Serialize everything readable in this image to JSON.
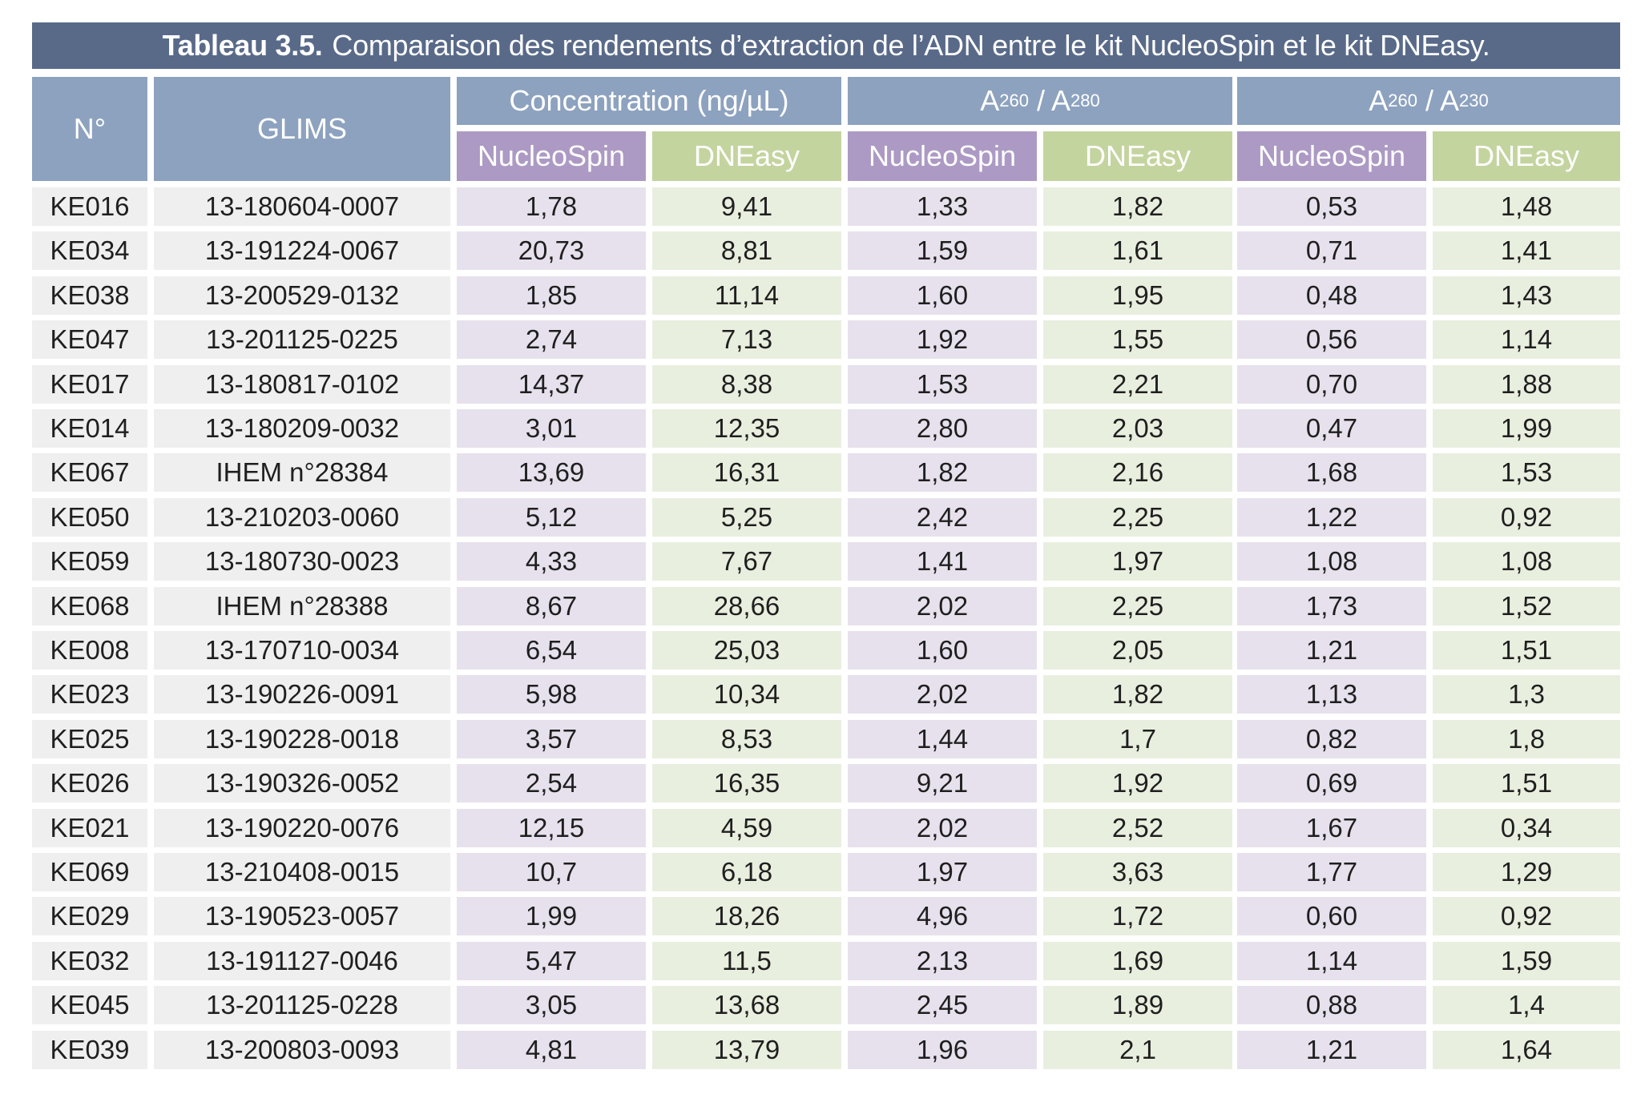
{
  "table": {
    "caption_number": "Tableau 3.5.",
    "caption_text": "Comparaison des rendements d’extraction de l’ADN entre le kit NucleoSpin et le kit DNEasy.",
    "headers": {
      "no": "N°",
      "glims": "GLIMS",
      "concentration": "Concentration (ng/µL)",
      "a280_main": "A",
      "a280_sub1": "260",
      "a280_sep": " / A",
      "a280_sub2": "280",
      "a230_main": "A",
      "a230_sub1": "260",
      "a230_sep": " / A",
      "a230_sub2": "230",
      "nucleospin": "NucleoSpin",
      "dneasy": "DNEasy"
    },
    "rows": [
      [
        "KE016",
        "13-180604-0007",
        "1,78",
        "9,41",
        "1,33",
        "1,82",
        "0,53",
        "1,48"
      ],
      [
        "KE034",
        "13-191224-0067",
        "20,73",
        "8,81",
        "1,59",
        "1,61",
        "0,71",
        "1,41"
      ],
      [
        "KE038",
        "13-200529-0132",
        "1,85",
        "11,14",
        "1,60",
        "1,95",
        "0,48",
        "1,43"
      ],
      [
        "KE047",
        "13-201125-0225",
        "2,74",
        "7,13",
        "1,92",
        "1,55",
        "0,56",
        "1,14"
      ],
      [
        "KE017",
        "13-180817-0102",
        "14,37",
        "8,38",
        "1,53",
        "2,21",
        "0,70",
        "1,88"
      ],
      [
        "KE014",
        "13-180209-0032",
        "3,01",
        "12,35",
        "2,80",
        "2,03",
        "0,47",
        "1,99"
      ],
      [
        "KE067",
        "IHEM n°28384",
        "13,69",
        "16,31",
        "1,82",
        "2,16",
        "1,68",
        "1,53"
      ],
      [
        "KE050",
        "13-210203-0060",
        "5,12",
        "5,25",
        "2,42",
        "2,25",
        "1,22",
        "0,92"
      ],
      [
        "KE059",
        "13-180730-0023",
        "4,33",
        "7,67",
        "1,41",
        "1,97",
        "1,08",
        "1,08"
      ],
      [
        "KE068",
        "IHEM n°28388",
        "8,67",
        "28,66",
        "2,02",
        "2,25",
        "1,73",
        "1,52"
      ],
      [
        "KE008",
        "13-170710-0034",
        "6,54",
        "25,03",
        "1,60",
        "2,05",
        "1,21",
        "1,51"
      ],
      [
        "KE023",
        "13-190226-0091",
        "5,98",
        "10,34",
        "2,02",
        "1,82",
        "1,13",
        "1,3"
      ],
      [
        "KE025",
        "13-190228-0018",
        "3,57",
        "8,53",
        "1,44",
        "1,7",
        "0,82",
        "1,8"
      ],
      [
        "KE026",
        "13-190326-0052",
        "2,54",
        "16,35",
        "9,21",
        "1,92",
        "0,69",
        "1,51"
      ],
      [
        "KE021",
        "13-190220-0076",
        "12,15",
        "4,59",
        "2,02",
        "2,52",
        "1,67",
        "0,34"
      ],
      [
        "KE069",
        "13-210408-0015",
        "10,7",
        "6,18",
        "1,97",
        "3,63",
        "1,77",
        "1,29"
      ],
      [
        "KE029",
        "13-190523-0057",
        "1,99",
        "18,26",
        "4,96",
        "1,72",
        "0,60",
        "0,92"
      ],
      [
        "KE032",
        "13-191127-0046",
        "5,47",
        "11,5",
        "2,13",
        "1,69",
        "1,14",
        "1,59"
      ],
      [
        "KE045",
        "13-201125-0228",
        "3,05",
        "13,68",
        "2,45",
        "1,89",
        "0,88",
        "1,4"
      ],
      [
        "KE039",
        "13-200803-0093",
        "4,81",
        "13,79",
        "1,96",
        "2,1",
        "1,21",
        "1,64"
      ]
    ]
  },
  "colors": {
    "title_bg": "#596a89",
    "header_main": "#8da2bf",
    "header_nucleospin": "#ac9ac4",
    "header_dneasy": "#c4d49f",
    "cell_main": "#efefef",
    "cell_nucleospin": "#e7e1ed",
    "cell_dneasy": "#e9efdf"
  }
}
